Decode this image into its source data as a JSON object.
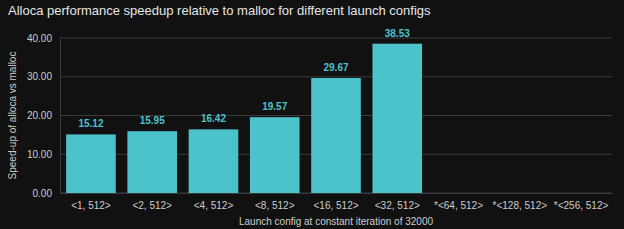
{
  "chart_data": {
    "type": "bar",
    "title": "Alloca performance speedup relative to malloc for different launch configs",
    "x_label": "Launch config at constant iteration of 32000",
    "y_label": "Speed-up of alloca vs malloc",
    "categories": [
      "<1, 512>",
      "<2, 512>",
      "<4, 512>",
      "<8, 512>",
      "<16, 512>",
      "<32, 512>",
      "*<64, 512>",
      "*<128, 512>",
      "*<256, 512>"
    ],
    "values": [
      15.12,
      15.95,
      16.42,
      19.57,
      29.67,
      38.53,
      null,
      null,
      null
    ],
    "color": "#4cc2cb",
    "ylim": [
      0,
      40
    ],
    "yticks": [
      {
        "value": 0,
        "label": "0.00"
      },
      {
        "value": 10,
        "label": "10.00"
      },
      {
        "value": 20,
        "label": "20.00"
      },
      {
        "value": 30,
        "label": "30.00"
      },
      {
        "value": 40,
        "label": "40.00"
      }
    ],
    "grid": true,
    "data_labels": true
  }
}
